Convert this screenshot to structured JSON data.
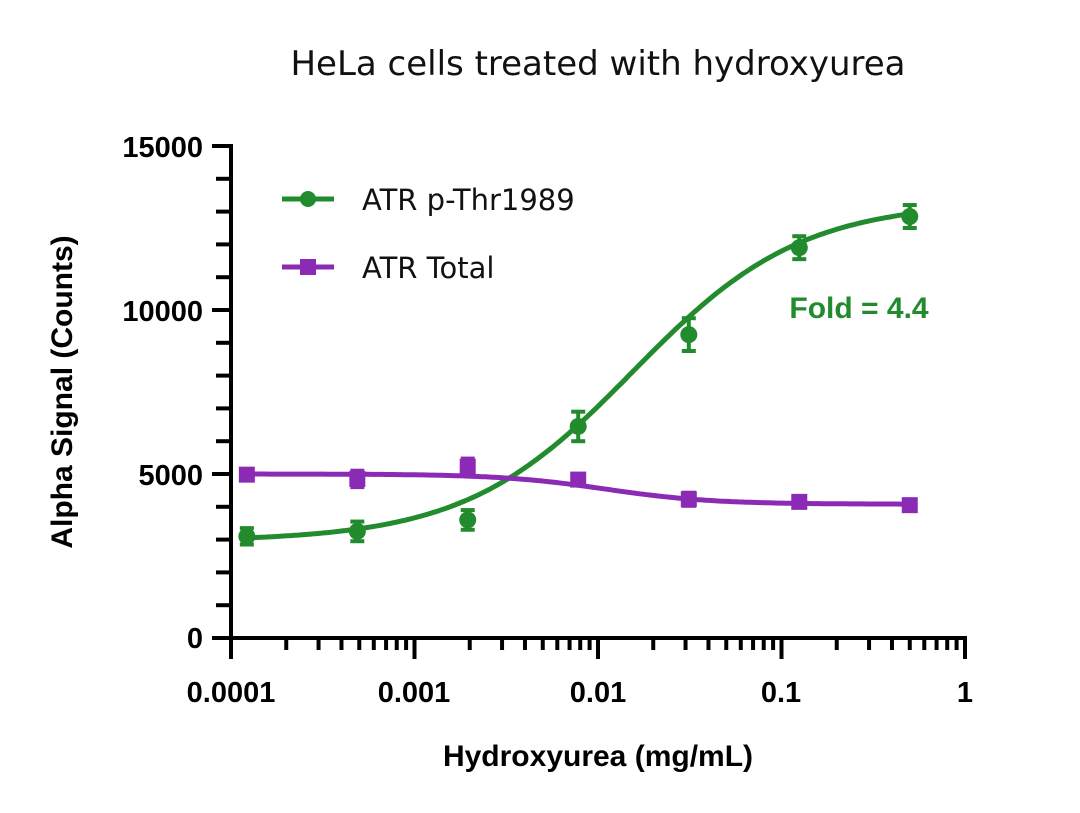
{
  "chart_data": {
    "type": "line",
    "title": "HeLa cells treated with hydroxyurea",
    "xlabel": "Hydroxyurea (mg/mL)",
    "ylabel": "Alpha Signal (Counts)",
    "xscale": "log",
    "xlim": [
      0.0001,
      1
    ],
    "ylim": [
      0,
      15000
    ],
    "x_ticks": [
      "0.0001",
      "0.001",
      "0.01",
      "0.1",
      "1"
    ],
    "y_ticks": [
      "0",
      "5000",
      "10000",
      "15000"
    ],
    "grid": false,
    "legend_position": "upper-left",
    "x": [
      0.000122,
      0.000488,
      0.00195,
      0.0078,
      0.03125,
      0.125,
      0.5
    ],
    "series": [
      {
        "name": "ATR p-Thr1989",
        "color": "#228B2D",
        "marker": "circle",
        "values": [
          3100,
          3250,
          3600,
          6450,
          9250,
          11900,
          12850
        ],
        "errors": [
          250,
          300,
          300,
          450,
          500,
          350,
          350
        ],
        "fit": "sigmoidal dose-response"
      },
      {
        "name": "ATR Total",
        "color": "#8B2BB5",
        "marker": "square",
        "values": [
          4980,
          4850,
          5220,
          4830,
          4230,
          4150,
          4050
        ],
        "errors": [
          100,
          250,
          250,
          100,
          200,
          100,
          80
        ],
        "fit": "sigmoidal dose-response"
      }
    ],
    "annotations": [
      {
        "text": "Fold = 4.4",
        "color": "#228B2D"
      }
    ]
  },
  "text": {
    "title": "HeLa cells treated with hydroxyurea",
    "xlabel": "Hydroxyurea (mg/mL)",
    "ylabel": "Alpha Signal (Counts)",
    "legend_green": "ATR p-Thr1989",
    "legend_purple": "ATR Total",
    "annotation": "Fold = 4.4",
    "xt0": "0.0001",
    "xt1": "0.001",
    "xt2": "0.01",
    "xt3": "0.1",
    "xt4": "1",
    "yt0": "0",
    "yt1": "5000",
    "yt2": "10000",
    "yt3": "15000"
  }
}
